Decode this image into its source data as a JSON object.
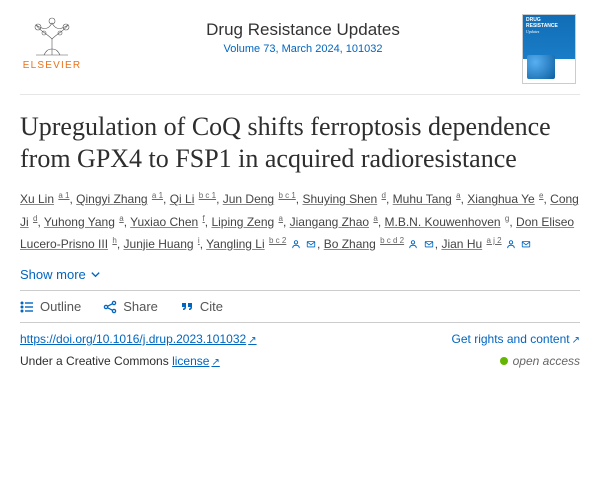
{
  "publisher": {
    "name": "ELSEVIER"
  },
  "journal": {
    "name": "Drug Resistance Updates",
    "volume": "Volume 73",
    "issue_date": "March 2024, 101032",
    "cover_title": "DRUG RESISTANCE",
    "cover_subtitle": "Updates"
  },
  "article": {
    "title": "Upregulation of CoQ shifts ferroptosis dependence from GPX4 to FSP1 in acquired radioresistance",
    "doi_url": "https://doi.org/10.1016/j.drup.2023.101032"
  },
  "authors": [
    {
      "name": "Xu Lin",
      "aff": "a 1"
    },
    {
      "name": "Qingyi Zhang",
      "aff": "a 1"
    },
    {
      "name": "Qi Li",
      "aff": "b c 1"
    },
    {
      "name": "Jun Deng",
      "aff": "b c 1"
    },
    {
      "name": "Shuying Shen",
      "aff": "d"
    },
    {
      "name": "Muhu Tang",
      "aff": "a"
    },
    {
      "name": "Xianghua Ye",
      "aff": "e"
    },
    {
      "name": "Cong Ji",
      "aff": "d"
    },
    {
      "name": "Yuhong Yang",
      "aff": "a"
    },
    {
      "name": "Yuxiao Chen",
      "aff": "f"
    },
    {
      "name": "Liping Zeng",
      "aff": "a"
    },
    {
      "name": "Jiangang Zhao",
      "aff": "a"
    },
    {
      "name": "M.B.N. Kouwenhoven",
      "aff": "g"
    },
    {
      "name": "Don Eliseo Lucero-Prisno III",
      "aff": "h"
    },
    {
      "name": "Junjie Huang",
      "aff": "i"
    },
    {
      "name": "Yangling Li",
      "aff": "b c 2",
      "corresponding": true
    },
    {
      "name": "Bo Zhang",
      "aff": "b c d 2",
      "corresponding": true
    },
    {
      "name": "Jian Hu",
      "aff": "a j 2",
      "corresponding": true
    }
  ],
  "ui": {
    "show_more": "Show more",
    "outline": "Outline",
    "share": "Share",
    "cite": "Cite",
    "rights": "Get rights and content",
    "license_prefix": "Under a Creative Commons",
    "license_link": "license",
    "open_access": "open access"
  },
  "colors": {
    "link": "#0066c0",
    "publisher_orange": "#e9711c",
    "oa_green": "#63b700"
  }
}
